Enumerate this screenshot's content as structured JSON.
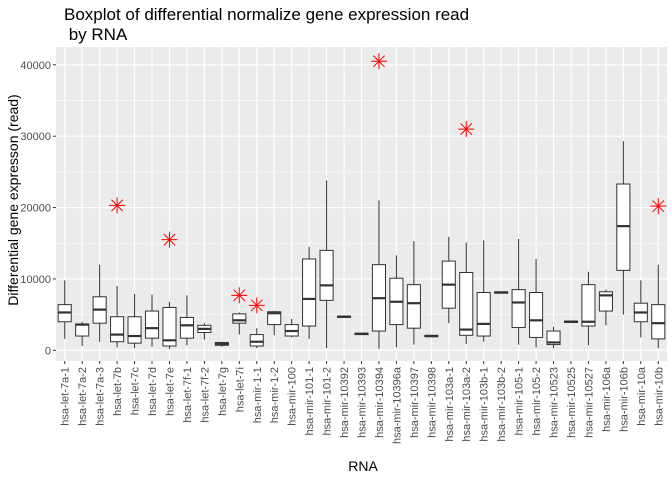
{
  "chart_data": {
    "type": "boxplot",
    "title_lines": [
      "Boxplot of differential normalize gene expression read",
      " by RNA"
    ],
    "xlabel": "RNA",
    "ylabel": "Differential gene expresson (read)",
    "ylim": [
      -1500,
      42500
    ],
    "yticks": [
      0,
      10000,
      20000,
      30000,
      40000
    ],
    "grid": true,
    "legend": "none",
    "colors": {
      "panel": "#ebebeb",
      "grid": "#ffffff",
      "box_fill": "#ffffff",
      "box_line": "#333333",
      "outlier": "#ff0000"
    },
    "series": [
      {
        "name": "hsa-let-7a-1",
        "min": 1600,
        "q1": 4000,
        "median": 5300,
        "q3": 6400,
        "max": 9800,
        "outliers": []
      },
      {
        "name": "hsa-let-7a-2",
        "min": 600,
        "q1": 2000,
        "median": 3600,
        "q3": 3700,
        "max": 4000,
        "outliers": []
      },
      {
        "name": "hsa-let-7a-3",
        "min": 1200,
        "q1": 3800,
        "median": 5700,
        "q3": 7500,
        "max": 12000,
        "outliers": []
      },
      {
        "name": "hsa-let-7b",
        "min": 400,
        "q1": 1200,
        "median": 2200,
        "q3": 4700,
        "max": 9000,
        "outliers": [
          20300
        ]
      },
      {
        "name": "hsa-let-7c",
        "min": 300,
        "q1": 1000,
        "median": 2000,
        "q3": 4700,
        "max": 7900,
        "outliers": []
      },
      {
        "name": "hsa-let-7d",
        "min": 500,
        "q1": 1700,
        "median": 3100,
        "q3": 5500,
        "max": 7800,
        "outliers": []
      },
      {
        "name": "hsa-let-7e",
        "min": 200,
        "q1": 600,
        "median": 1400,
        "q3": 6000,
        "max": 6800,
        "outliers": [
          15500
        ]
      },
      {
        "name": "hsa-let-7f-1",
        "min": 700,
        "q1": 1700,
        "median": 3500,
        "q3": 4600,
        "max": 7700,
        "outliers": []
      },
      {
        "name": "hsa-let-7f-2",
        "min": 1500,
        "q1": 2500,
        "median": 3000,
        "q3": 3500,
        "max": 3800,
        "outliers": []
      },
      {
        "name": "hsa-let-7g",
        "min": 500,
        "q1": 700,
        "median": 900,
        "q3": 1100,
        "max": 1200,
        "outliers": []
      },
      {
        "name": "hsa-let-7i",
        "min": 2200,
        "q1": 3800,
        "median": 4200,
        "q3": 5100,
        "max": 5300,
        "outliers": [
          7700
        ]
      },
      {
        "name": "hsa-mir-1-1",
        "min": 300,
        "q1": 600,
        "median": 1200,
        "q3": 2200,
        "max": 3100,
        "outliers": [
          6300
        ]
      },
      {
        "name": "hsa-mir-1-2",
        "min": 2100,
        "q1": 3600,
        "median": 5200,
        "q3": 5400,
        "max": 5500,
        "outliers": []
      },
      {
        "name": "hsa-mir-100",
        "min": 1800,
        "q1": 2000,
        "median": 2700,
        "q3": 3600,
        "max": 4400,
        "outliers": []
      },
      {
        "name": "hsa-mir-101-1",
        "min": 1600,
        "q1": 3400,
        "median": 7200,
        "q3": 12800,
        "max": 14500,
        "outliers": []
      },
      {
        "name": "hsa-mir-101-2",
        "min": 300,
        "q1": 7000,
        "median": 9100,
        "q3": 14000,
        "max": 23800,
        "outliers": []
      },
      {
        "name": "hsa-mir-10392",
        "min": 4600,
        "q1": 4600,
        "median": 4700,
        "q3": 4800,
        "max": 4800,
        "outliers": []
      },
      {
        "name": "hsa-mir-10393",
        "min": 2200,
        "q1": 2200,
        "median": 2300,
        "q3": 2400,
        "max": 2400,
        "outliers": []
      },
      {
        "name": "hsa-mir-10394",
        "min": 200,
        "q1": 2700,
        "median": 7300,
        "q3": 12000,
        "max": 21000,
        "outliers": [
          40500
        ]
      },
      {
        "name": "hsa-mir-10396a",
        "min": 400,
        "q1": 3600,
        "median": 6800,
        "q3": 10100,
        "max": 13300,
        "outliers": []
      },
      {
        "name": "hsa-mir-10397",
        "min": 800,
        "q1": 3100,
        "median": 6600,
        "q3": 9200,
        "max": 15300,
        "outliers": []
      },
      {
        "name": "hsa-mir-10398",
        "min": 1900,
        "q1": 1900,
        "median": 2000,
        "q3": 2100,
        "max": 2100,
        "outliers": []
      },
      {
        "name": "hsa-mir-103a-1",
        "min": 3800,
        "q1": 5900,
        "median": 9200,
        "q3": 12500,
        "max": 15900,
        "outliers": []
      },
      {
        "name": "hsa-mir-103a-2",
        "min": 900,
        "q1": 2100,
        "median": 2900,
        "q3": 10900,
        "max": 15100,
        "outliers": [
          31000
        ]
      },
      {
        "name": "hsa-mir-103b-1",
        "min": 1200,
        "q1": 2000,
        "median": 3700,
        "q3": 8100,
        "max": 15400,
        "outliers": []
      },
      {
        "name": "hsa-mir-103b-2",
        "min": 8000,
        "q1": 8000,
        "median": 8100,
        "q3": 8200,
        "max": 8200,
        "outliers": []
      },
      {
        "name": "hsa-mir-105-1",
        "min": 800,
        "q1": 3200,
        "median": 6700,
        "q3": 8500,
        "max": 15600,
        "outliers": []
      },
      {
        "name": "hsa-mir-105-2",
        "min": 400,
        "q1": 1800,
        "median": 4200,
        "q3": 8100,
        "max": 12800,
        "outliers": []
      },
      {
        "name": "hsa-mir-10523",
        "min": 300,
        "q1": 800,
        "median": 1100,
        "q3": 2700,
        "max": 3300,
        "outliers": []
      },
      {
        "name": "hsa-mir-10525",
        "min": 3900,
        "q1": 3900,
        "median": 4000,
        "q3": 4100,
        "max": 4100,
        "outliers": []
      },
      {
        "name": "hsa-mir-10527",
        "min": 700,
        "q1": 3400,
        "median": 4000,
        "q3": 9200,
        "max": 11000,
        "outliers": []
      },
      {
        "name": "hsa-mir-106a",
        "min": 3500,
        "q1": 5500,
        "median": 7700,
        "q3": 8200,
        "max": 8500,
        "outliers": []
      },
      {
        "name": "hsa-mir-106b",
        "min": 5000,
        "q1": 11200,
        "median": 17400,
        "q3": 23300,
        "max": 29300,
        "outliers": []
      },
      {
        "name": "hsa-mir-10a",
        "min": 1800,
        "q1": 4000,
        "median": 5300,
        "q3": 6600,
        "max": 9800,
        "outliers": []
      },
      {
        "name": "hsa-mir-10b",
        "min": 300,
        "q1": 1600,
        "median": 3800,
        "q3": 6400,
        "max": 12000,
        "outliers": [
          20200
        ]
      }
    ]
  }
}
